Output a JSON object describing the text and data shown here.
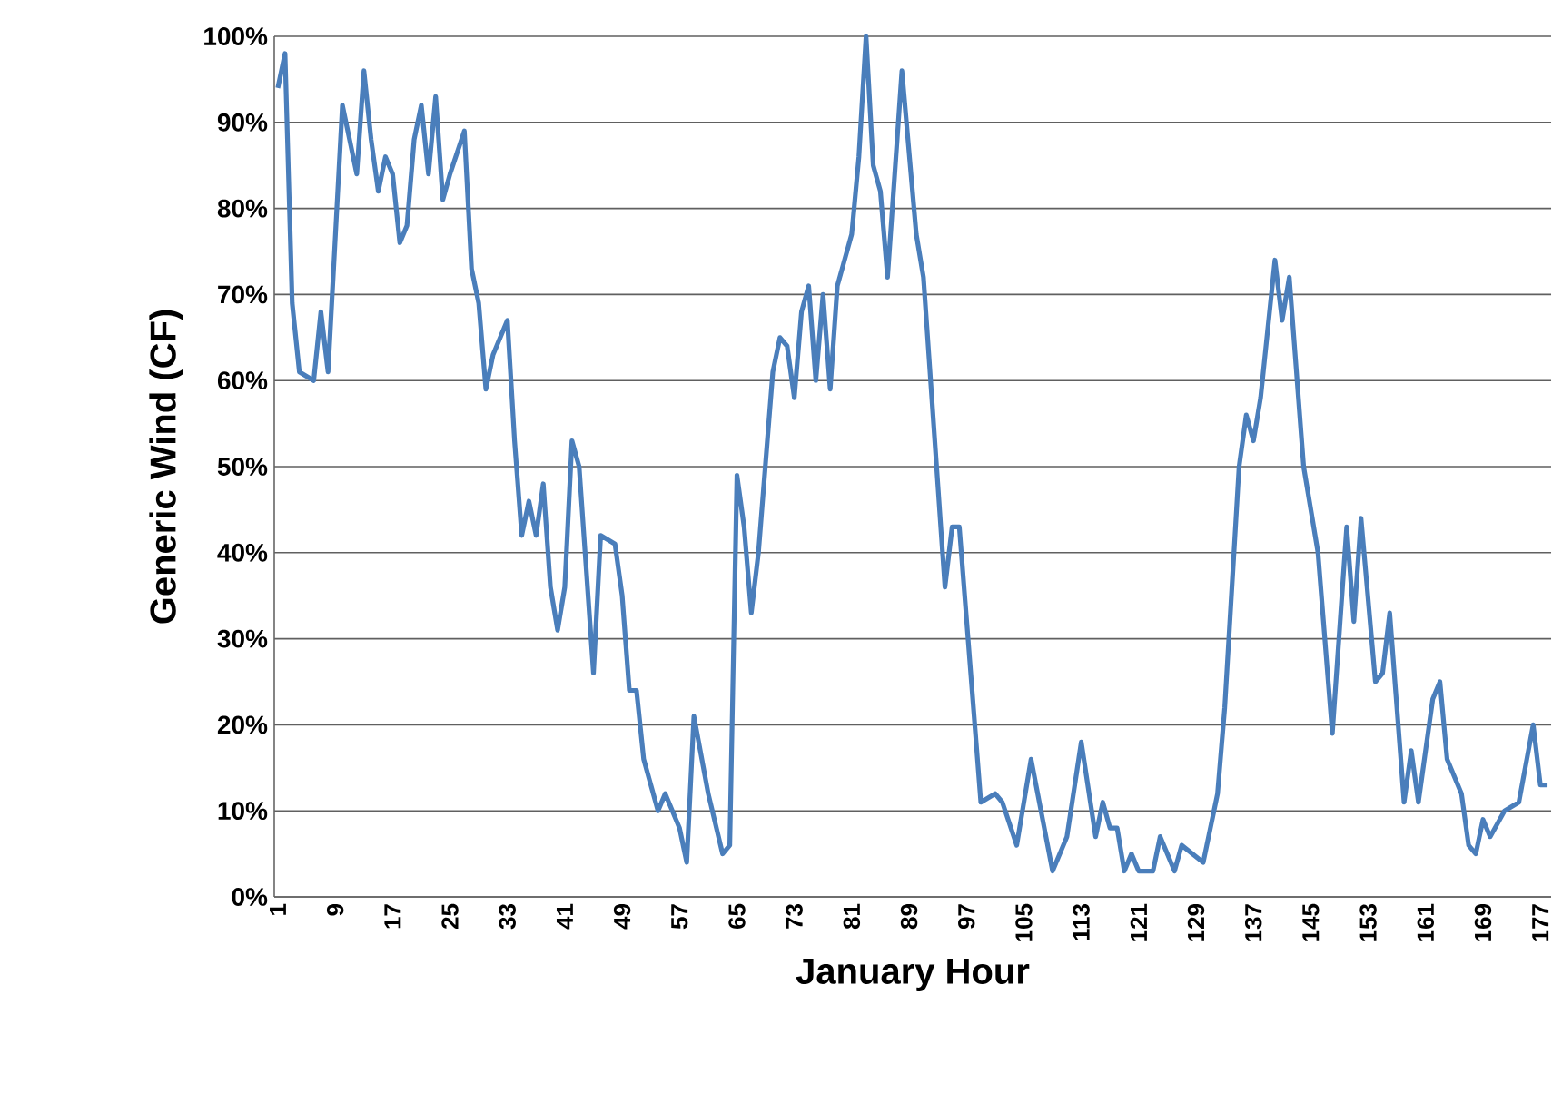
{
  "chart_data": {
    "type": "line",
    "xlabel": "January Hour",
    "ylabel": "Generic Wind (CF)",
    "x": [
      1,
      2,
      3,
      4,
      6,
      7,
      8,
      10,
      12,
      13,
      14,
      15,
      16,
      17,
      18,
      19,
      20,
      21,
      22,
      23,
      24,
      25,
      27,
      28,
      29,
      30,
      31,
      33,
      34,
      35,
      36,
      37,
      38,
      39,
      40,
      41,
      42,
      43,
      45,
      46,
      48,
      49,
      50,
      51,
      52,
      54,
      55,
      56,
      57,
      58,
      59,
      61,
      63,
      64,
      65,
      66,
      67,
      68,
      70,
      71,
      72,
      73,
      74,
      75,
      76,
      77,
      78,
      79,
      81,
      82,
      83,
      84,
      85,
      86,
      88,
      90,
      91,
      94,
      95,
      96,
      99,
      101,
      102,
      104,
      106,
      109,
      111,
      113,
      115,
      116,
      117,
      118,
      119,
      120,
      121,
      123,
      124,
      126,
      127,
      130,
      132,
      133,
      135,
      136,
      137,
      138,
      140,
      141,
      142,
      144,
      146,
      148,
      150,
      151,
      152,
      154,
      155,
      156,
      158,
      159,
      160,
      162,
      163,
      164,
      166,
      167,
      168,
      169,
      170,
      172,
      174,
      176,
      177,
      178
    ],
    "series": [
      {
        "color": "#4a7ebb",
        "values": [
          94,
          98,
          69,
          61,
          60,
          68,
          61,
          92,
          84,
          96,
          88,
          82,
          86,
          84,
          76,
          78,
          88,
          92,
          84,
          93,
          81,
          84,
          89,
          73,
          69,
          59,
          63,
          67,
          53,
          42,
          46,
          42,
          48,
          36,
          31,
          36,
          53,
          50,
          26,
          42,
          41,
          35,
          24,
          24,
          16,
          10,
          12,
          10,
          8,
          4,
          21,
          12,
          5,
          6,
          49,
          43,
          33,
          40,
          61,
          65,
          64,
          58,
          68,
          71,
          60,
          70,
          59,
          71,
          77,
          86,
          100,
          85,
          82,
          72,
          96,
          77,
          72,
          36,
          43,
          43,
          11,
          12,
          11,
          6,
          16,
          3,
          7,
          18,
          7,
          11,
          8,
          8,
          3,
          5,
          3,
          3,
          7,
          3,
          6,
          4,
          12,
          22,
          50,
          56,
          53,
          58,
          74,
          67,
          72,
          50,
          40,
          19,
          43,
          32,
          44,
          25,
          26,
          33,
          11,
          17,
          11,
          23,
          25,
          16,
          12,
          6,
          5,
          9,
          7,
          10,
          11,
          20,
          13,
          13
        ]
      }
    ],
    "xlim": [
      0.5,
      178.5
    ],
    "xticks": [
      1,
      9,
      17,
      25,
      33,
      41,
      49,
      57,
      65,
      73,
      81,
      89,
      97,
      105,
      113,
      121,
      129,
      137,
      145,
      153,
      161,
      169,
      177
    ],
    "ylim": [
      0,
      100
    ],
    "yticks": [
      {
        "value": 0,
        "label": "0%"
      },
      {
        "value": 10,
        "label": "10%"
      },
      {
        "value": 20,
        "label": "20%"
      },
      {
        "value": 30,
        "label": "30%"
      },
      {
        "value": 40,
        "label": "40%"
      },
      {
        "value": 50,
        "label": "50%"
      },
      {
        "value": 60,
        "label": "60%"
      },
      {
        "value": 70,
        "label": "70%"
      },
      {
        "value": 80,
        "label": "80%"
      },
      {
        "value": 90,
        "label": "90%"
      },
      {
        "value": 100,
        "label": "100%"
      }
    ],
    "grid": "y",
    "legend": false,
    "marker": "none",
    "line_style": "solid"
  }
}
